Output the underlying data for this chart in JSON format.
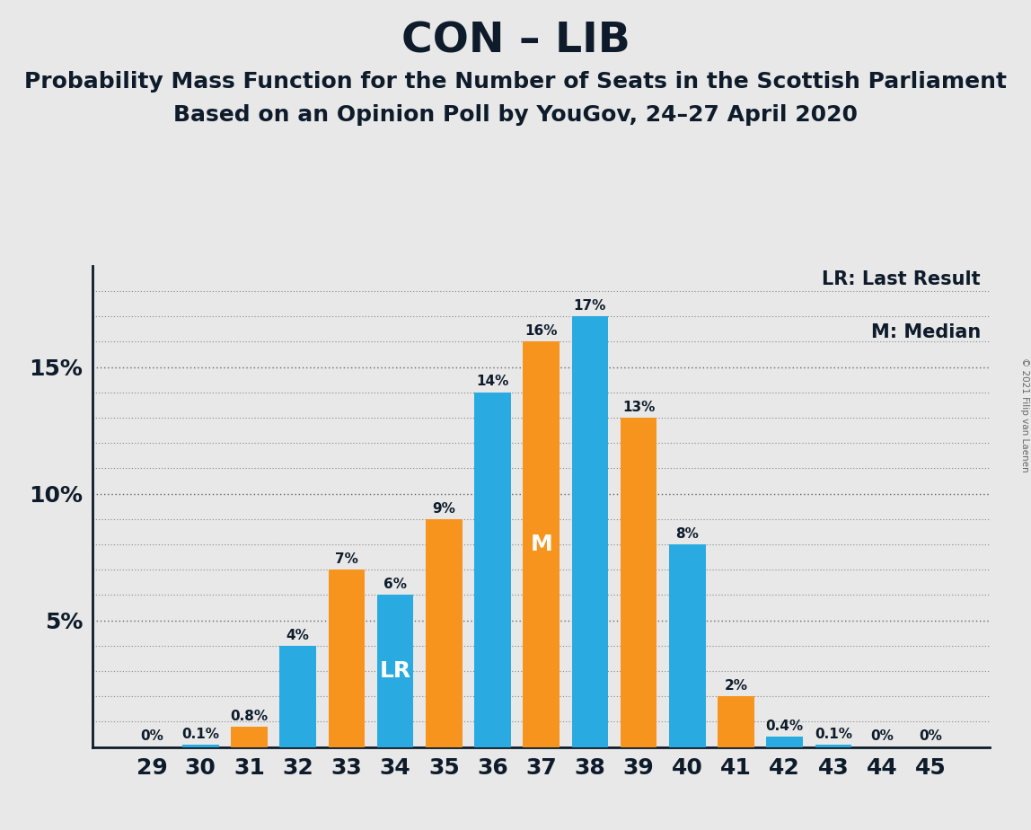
{
  "title": "CON – LIB",
  "subtitle1": "Probability Mass Function for the Number of Seats in the Scottish Parliament",
  "subtitle2": "Based on an Opinion Poll by YouGov, 24–27 April 2020",
  "copyright": "© 2021 Filip van Laenen",
  "categories": [
    29,
    30,
    31,
    32,
    33,
    34,
    35,
    36,
    37,
    38,
    39,
    40,
    41,
    42,
    43,
    44,
    45
  ],
  "values": [
    0.0,
    0.1,
    0.8,
    4.0,
    7.0,
    6.0,
    9.0,
    14.0,
    16.0,
    17.0,
    13.0,
    8.0,
    2.0,
    0.4,
    0.1,
    0.0,
    0.0
  ],
  "colors": [
    "#29ABE2",
    "#29ABE2",
    "#F7941D",
    "#29ABE2",
    "#F7941D",
    "#29ABE2",
    "#F7941D",
    "#29ABE2",
    "#F7941D",
    "#29ABE2",
    "#F7941D",
    "#29ABE2",
    "#F7941D",
    "#29ABE2",
    "#29ABE2",
    "#29ABE2",
    "#29ABE2"
  ],
  "bar_labels": [
    "0%",
    "0.1%",
    "0.8%",
    "4%",
    "7%",
    "6%",
    "9%",
    "14%",
    "16%",
    "17%",
    "13%",
    "8%",
    "2%",
    "0.4%",
    "0.1%",
    "0%",
    "0%"
  ],
  "lr_index": 5,
  "median_index": 8,
  "blue_color": "#29ABE2",
  "orange_color": "#F7941D",
  "background_color": "#E8E8E8",
  "ylim": [
    0,
    19
  ],
  "yticks": [
    5,
    10,
    15
  ],
  "ytick_labels": [
    "5%",
    "10%",
    "15%"
  ],
  "legend_lr": "LR: Last Result",
  "legend_m": "M: Median",
  "title_fontsize": 34,
  "subtitle_fontsize": 18,
  "label_fontsize": 11,
  "tick_fontsize": 18
}
